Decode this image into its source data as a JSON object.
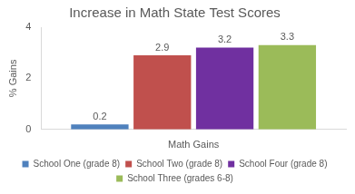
{
  "chart_data": {
    "type": "bar",
    "title": "Increase in Math State Test Scores",
    "y_label": "% Gains",
    "categories": [
      "Math Gains"
    ],
    "series": [
      {
        "name": "School One (grade 8)",
        "color": "#4f81bd",
        "values": [
          0.2
        ]
      },
      {
        "name": "School Two (grade 8)",
        "color": "#c0504d",
        "values": [
          2.9
        ]
      },
      {
        "name": "School Four (grade 8)",
        "color": "#7030a0",
        "values": [
          3.2
        ]
      },
      {
        "name": "School Three (grades 6-8)",
        "color": "#9bbb59",
        "values": [
          3.3
        ]
      }
    ],
    "ylim": [
      0,
      4
    ],
    "yticks": [
      0,
      2,
      4
    ],
    "grid": false,
    "legend": "bottom",
    "data_labels": true
  }
}
